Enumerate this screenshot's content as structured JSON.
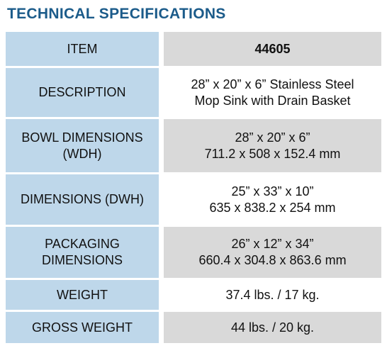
{
  "title": "TECHNICAL SPECIFICATIONS",
  "table": {
    "rows": [
      {
        "label": [
          "ITEM"
        ],
        "value": [
          "44605"
        ]
      },
      {
        "label": [
          "DESCRIPTION"
        ],
        "value": [
          "28” x 20” x 6” Stainless Steel",
          "Mop Sink with Drain Basket"
        ]
      },
      {
        "label": [
          "BOWL DIMENSIONS",
          "(WDH)"
        ],
        "value": [
          "28” x 20” x 6”",
          "711.2 x 508 x 152.4 mm"
        ]
      },
      {
        "label": [
          "DIMENSIONS (DWH)"
        ],
        "value": [
          "25” x 33” x 10”",
          "635 x 838.2 x 254 mm"
        ]
      },
      {
        "label": [
          "PACKAGING",
          "DIMENSIONS"
        ],
        "value": [
          "26” x 12” x 34”",
          "660.4 x 304.8 x 863.6 mm"
        ]
      },
      {
        "label": [
          "WEIGHT"
        ],
        "value": [
          "37.4 lbs. / 17 kg."
        ]
      },
      {
        "label": [
          "GROSS WEIGHT"
        ],
        "value": [
          "44 lbs. / 20 kg."
        ]
      }
    ]
  }
}
